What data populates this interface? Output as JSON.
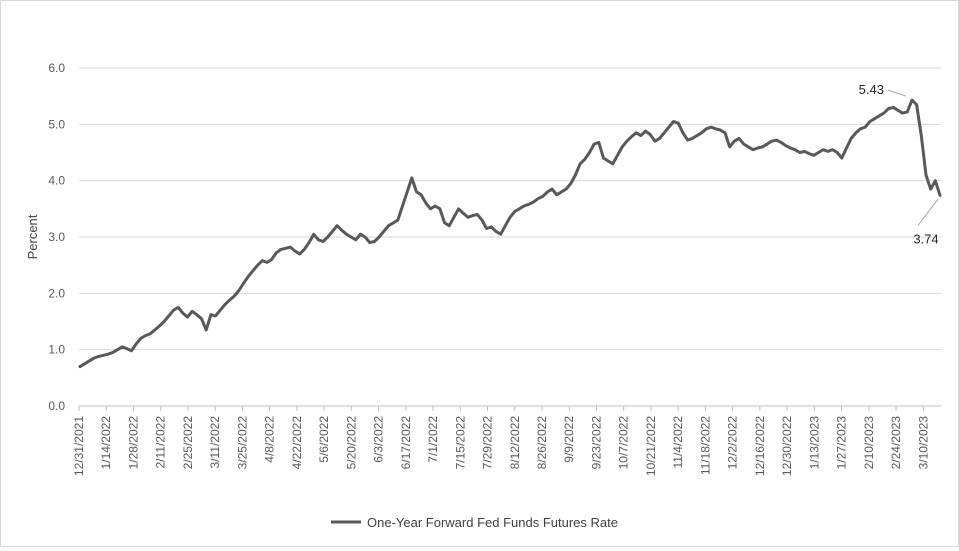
{
  "chart_data": {
    "type": "line",
    "title": "",
    "xlabel": "",
    "ylabel": "Percent",
    "ylim": [
      0,
      6
    ],
    "yticks": [
      "0.0",
      "1.0",
      "2.0",
      "3.0",
      "4.0",
      "5.0",
      "6.0"
    ],
    "grid": "horizontal",
    "legend_position": "bottom",
    "x_tick_labels": [
      "12/31/2021",
      "1/14/2022",
      "1/28/2022",
      "2/11/2022",
      "2/25/2022",
      "3/11/2022",
      "3/25/2022",
      "4/8/2022",
      "4/22/2022",
      "5/6/2022",
      "5/20/2022",
      "6/3/2022",
      "6/17/2022",
      "7/1/2022",
      "7/15/2022",
      "7/29/2022",
      "8/12/2022",
      "8/26/2022",
      "9/9/2022",
      "9/23/2022",
      "10/7/2022",
      "10/21/2022",
      "11/4/2022",
      "11/18/2022",
      "12/2/2022",
      "12/16/2022",
      "12/30/2022",
      "1/13/2023",
      "1/27/2023",
      "2/10/2023",
      "2/24/2023",
      "3/10/2023"
    ],
    "series": [
      {
        "name": "One-Year Forward Fed Funds Futures Rate",
        "color": "#595959",
        "values": [
          0.7,
          0.75,
          0.8,
          0.85,
          0.88,
          0.9,
          0.92,
          0.95,
          1.0,
          1.05,
          1.02,
          0.98,
          1.1,
          1.2,
          1.25,
          1.28,
          1.35,
          1.42,
          1.5,
          1.6,
          1.7,
          1.75,
          1.65,
          1.58,
          1.68,
          1.62,
          1.55,
          1.35,
          1.62,
          1.6,
          1.7,
          1.8,
          1.88,
          1.95,
          2.05,
          2.18,
          2.3,
          2.4,
          2.5,
          2.58,
          2.55,
          2.6,
          2.72,
          2.78,
          2.8,
          2.82,
          2.75,
          2.7,
          2.78,
          2.9,
          3.05,
          2.95,
          2.92,
          3.0,
          3.1,
          3.2,
          3.12,
          3.05,
          3.0,
          2.95,
          3.05,
          3.0,
          2.9,
          2.92,
          3.0,
          3.1,
          3.2,
          3.25,
          3.3,
          3.55,
          3.8,
          4.05,
          3.8,
          3.75,
          3.6,
          3.5,
          3.55,
          3.5,
          3.25,
          3.2,
          3.35,
          3.5,
          3.42,
          3.35,
          3.38,
          3.4,
          3.3,
          3.15,
          3.18,
          3.1,
          3.05,
          3.2,
          3.35,
          3.45,
          3.5,
          3.55,
          3.58,
          3.62,
          3.68,
          3.72,
          3.8,
          3.85,
          3.75,
          3.8,
          3.85,
          3.95,
          4.1,
          4.3,
          4.38,
          4.5,
          4.65,
          4.68,
          4.4,
          4.35,
          4.3,
          4.45,
          4.6,
          4.7,
          4.78,
          4.85,
          4.8,
          4.88,
          4.82,
          4.7,
          4.75,
          4.85,
          4.95,
          5.05,
          5.02,
          4.85,
          4.72,
          4.75,
          4.8,
          4.85,
          4.92,
          4.95,
          4.92,
          4.9,
          4.85,
          4.6,
          4.7,
          4.75,
          4.65,
          4.6,
          4.55,
          4.58,
          4.6,
          4.65,
          4.7,
          4.72,
          4.68,
          4.62,
          4.58,
          4.55,
          4.5,
          4.52,
          4.48,
          4.45,
          4.5,
          4.55,
          4.52,
          4.55,
          4.5,
          4.4,
          4.58,
          4.75,
          4.85,
          4.92,
          4.95,
          5.05,
          5.1,
          5.15,
          5.2,
          5.28,
          5.3,
          5.25,
          5.2,
          5.22,
          5.43,
          5.35,
          4.8,
          4.1,
          3.85,
          4.0,
          3.74
        ]
      }
    ],
    "annotations": [
      {
        "label": "5.43",
        "value": 5.43
      },
      {
        "label": "3.74",
        "value": 3.74
      }
    ]
  }
}
